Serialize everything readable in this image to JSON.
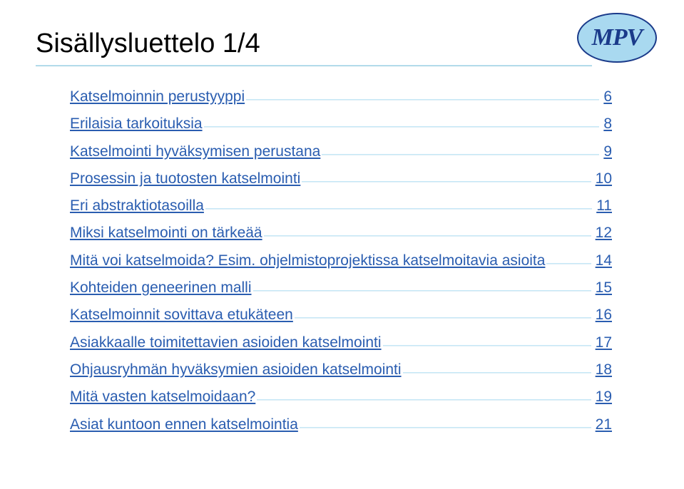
{
  "logo": {
    "text": "MPV",
    "ellipse_fill": "#a9d9f0",
    "ellipse_stroke": "#1a3a8a",
    "text_color": "#1a3a8a"
  },
  "title": "Sisällysluettelo 1/4",
  "title_color": "#000000",
  "title_fontsize": 38,
  "underline_color": "#c7e8f7",
  "link_color": "#2a5db0",
  "leader_color": "#c7e8f7",
  "font_family": "Arial",
  "toc_fontsize": 21,
  "toc": [
    {
      "label": "Katselmoinnin perustyyppi",
      "page": "6"
    },
    {
      "label": "Erilaisia tarkoituksia",
      "page": "8"
    },
    {
      "label": "Katselmointi hyväksymisen perustana",
      "page": "9"
    },
    {
      "label": "Prosessin ja tuotosten katselmointi",
      "page": "10"
    },
    {
      "label": "Eri abstraktiotasoilla",
      "page": "11"
    },
    {
      "label": "Miksi katselmointi on tärkeää",
      "page": "12"
    },
    {
      "label": "Mitä voi katselmoida? Esim. ohjelmistoprojektissa katselmoitavia asioita",
      "page": "14"
    },
    {
      "label": "Kohteiden geneerinen malli",
      "page": "15"
    },
    {
      "label": "Katselmoinnit sovittava etukäteen",
      "page": "16"
    },
    {
      "label": "Asiakkaalle toimitettavien asioiden katselmointi",
      "page": "17"
    },
    {
      "label": "Ohjausryhmän hyväksymien asioiden katselmointi",
      "page": "18"
    },
    {
      "label": "Mitä vasten katselmoidaan?",
      "page": "19"
    },
    {
      "label": "Asiat kuntoon ennen katselmointia",
      "page": "21"
    }
  ]
}
